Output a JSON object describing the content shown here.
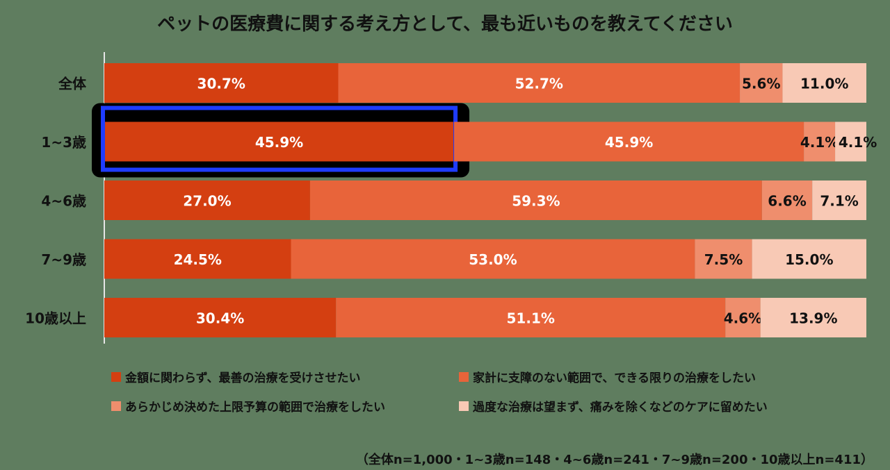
{
  "chart_data": {
    "type": "bar",
    "orientation": "horizontal",
    "stacked": true,
    "normalized": true,
    "title": "ペットの医療費に関する考え方として、最も近いものを教えてください",
    "categories": [
      "全体",
      "1~3歳",
      "4~6歳",
      "7~9歳",
      "10歳以上"
    ],
    "series": [
      {
        "name": "金額に関わらず、最善の治療を受けさせたい",
        "color": "#d43f11",
        "values": [
          30.7,
          45.9,
          27.0,
          24.5,
          30.4
        ]
      },
      {
        "name": "家計に支障のない範囲で、できる限りの治療をしたい",
        "color": "#e8643a",
        "values": [
          52.7,
          45.9,
          59.3,
          53.0,
          51.1
        ]
      },
      {
        "name": "あらかじめ決めた上限予算の範囲で治療をしたい",
        "color": "#ef8e6d",
        "values": [
          5.6,
          4.1,
          6.6,
          7.5,
          4.6
        ]
      },
      {
        "name": "過度な治療は望まず、痛みを除くなどのケアに留めたい",
        "color": "#f8c9b5",
        "values": [
          11.0,
          4.1,
          7.1,
          15.0,
          13.9
        ]
      }
    ],
    "data_labels": [
      [
        "30.7%",
        "45.9%",
        "27.0%",
        "24.5%",
        "30.4%"
      ],
      [
        "52.7%",
        "45.9%",
        "59.3%",
        "53.0%",
        "51.1%"
      ],
      [
        "5.6%",
        "4.1%",
        "6.6%",
        "7.5%",
        "4.6%"
      ],
      [
        "11.0%",
        "4.1%",
        "7.1%",
        "15.0%",
        "13.9%"
      ]
    ],
    "highlight": {
      "category_index": 1,
      "series_index": 0,
      "color": "#1f3cff"
    },
    "xlim": [
      0,
      100
    ],
    "legend_position": "bottom",
    "grid": false
  },
  "note": "（全体n=1,000・1~3歳n=148・4~6歳n=241・7~9歳n=200・10歳以上n=411）"
}
